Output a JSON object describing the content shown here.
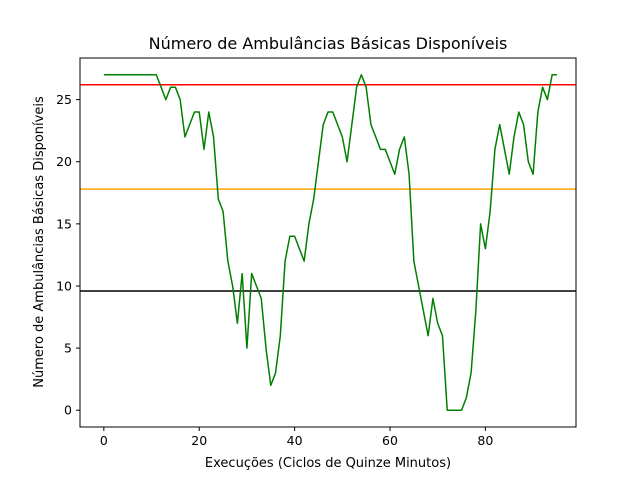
{
  "chart_data": {
    "type": "line",
    "title": "Número de Ambulâncias Básicas Disponíveis",
    "xlabel": "Execuções (Ciclos de Quinze Minutos)",
    "ylabel": "Número de Ambulâncias Básicas Disponíveis",
    "xlim": [
      -5,
      99
    ],
    "ylim": [
      -1.35,
      28.35
    ],
    "xticks": [
      0,
      20,
      40,
      60,
      80
    ],
    "yticks": [
      0,
      5,
      10,
      15,
      20,
      25
    ],
    "grid": false,
    "series": [
      {
        "color": "#008000",
        "x": [
          0,
          1,
          2,
          3,
          4,
          5,
          6,
          7,
          8,
          9,
          10,
          11,
          12,
          13,
          14,
          15,
          16,
          17,
          18,
          19,
          20,
          21,
          22,
          23,
          24,
          25,
          26,
          27,
          28,
          29,
          30,
          31,
          32,
          33,
          34,
          35,
          36,
          37,
          38,
          39,
          40,
          41,
          42,
          43,
          44,
          45,
          46,
          47,
          48,
          49,
          50,
          51,
          52,
          53,
          54,
          55,
          56,
          57,
          58,
          59,
          60,
          61,
          62,
          63,
          64,
          65,
          66,
          67,
          68,
          69,
          70,
          71,
          72,
          73,
          74,
          75,
          76,
          77,
          78,
          79,
          80,
          81,
          82,
          83,
          84,
          85,
          86,
          87,
          88,
          89,
          90,
          91,
          92,
          93,
          94,
          95
        ],
        "y": [
          27,
          27,
          27,
          27,
          27,
          27,
          27,
          27,
          27,
          27,
          27,
          27,
          26,
          25,
          26,
          26,
          25,
          22,
          23,
          24,
          24,
          21,
          24,
          22,
          17,
          16,
          12,
          10,
          7,
          11,
          5,
          11,
          10,
          9,
          5,
          2,
          3,
          6,
          12,
          14,
          14,
          13,
          12,
          15,
          17,
          20,
          23,
          24,
          24,
          23,
          22,
          20,
          23,
          26,
          27,
          26,
          23,
          22,
          21,
          21,
          20,
          19,
          21,
          22,
          19,
          12,
          10,
          8,
          6,
          9,
          7,
          6,
          0,
          0,
          0,
          0,
          1,
          3,
          8,
          15,
          13,
          16,
          21,
          23,
          21,
          19,
          22,
          24,
          23,
          20,
          19,
          24,
          26,
          25,
          27,
          27
        ]
      }
    ],
    "hlines": [
      {
        "y": 26.2,
        "color": "#ff0000"
      },
      {
        "y": 17.8,
        "color": "#ffa500"
      },
      {
        "y": 9.6,
        "color": "#000000"
      }
    ]
  }
}
